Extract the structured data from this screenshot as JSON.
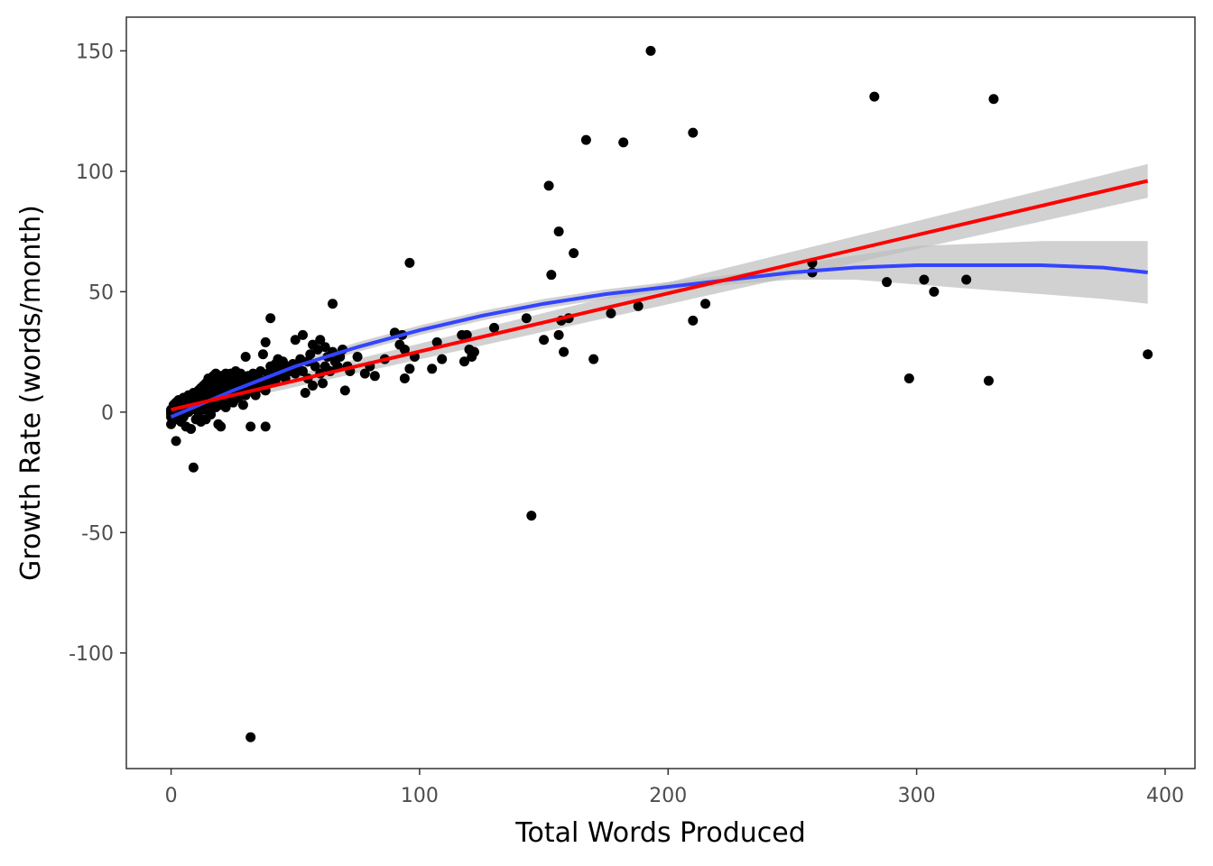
{
  "chart_data": {
    "type": "scatter",
    "title": "",
    "xlabel": "Total Words Produced",
    "ylabel": "Growth Rate (words/month)",
    "xlim": [
      -18,
      412
    ],
    "ylim": [
      -148,
      164
    ],
    "xticks": [
      0,
      100,
      200,
      300,
      400
    ],
    "yticks": [
      -100,
      -50,
      0,
      50,
      100,
      150
    ],
    "xtick_labels": [
      "0",
      "100",
      "200",
      "300",
      "400"
    ],
    "ytick_labels": [
      "-100",
      "-50",
      "0",
      "50",
      "100",
      "150"
    ],
    "grid": false,
    "legend": "none",
    "colors": {
      "points": "#000000",
      "linear_fit": "#ff0000",
      "smooth_fit": "#3344ff",
      "confidence_band": "#bebebe",
      "panel_border": "#333333"
    },
    "points": [
      [
        0,
        0
      ],
      [
        0,
        -2
      ],
      [
        0,
        1
      ],
      [
        0,
        -1
      ],
      [
        0,
        0.5
      ],
      [
        0,
        -5
      ],
      [
        1,
        1
      ],
      [
        1,
        -2
      ],
      [
        1,
        3
      ],
      [
        1,
        -1
      ],
      [
        2,
        0
      ],
      [
        2,
        2
      ],
      [
        2,
        -3
      ],
      [
        2,
        4
      ],
      [
        2,
        -12
      ],
      [
        3,
        1
      ],
      [
        3,
        -2
      ],
      [
        3,
        3
      ],
      [
        3,
        5
      ],
      [
        4,
        2
      ],
      [
        4,
        -1
      ],
      [
        4,
        4
      ],
      [
        4,
        -4
      ],
      [
        5,
        3
      ],
      [
        5,
        1
      ],
      [
        5,
        6
      ],
      [
        5,
        -2
      ],
      [
        6,
        2
      ],
      [
        6,
        -6
      ],
      [
        6,
        5
      ],
      [
        7,
        4
      ],
      [
        7,
        0
      ],
      [
        7,
        7
      ],
      [
        8,
        3
      ],
      [
        8,
        -7
      ],
      [
        8,
        6
      ],
      [
        8,
        1
      ],
      [
        9,
        -23
      ],
      [
        9,
        5
      ],
      [
        9,
        2
      ],
      [
        9,
        8
      ],
      [
        10,
        4
      ],
      [
        10,
        -3
      ],
      [
        10,
        7
      ],
      [
        10,
        1
      ],
      [
        11,
        6
      ],
      [
        11,
        3
      ],
      [
        11,
        9
      ],
      [
        11,
        -2
      ],
      [
        12,
        5
      ],
      [
        12,
        8
      ],
      [
        12,
        -4
      ],
      [
        12,
        10
      ],
      [
        13,
        4
      ],
      [
        13,
        7
      ],
      [
        13,
        1
      ],
      [
        13,
        11
      ],
      [
        14,
        6
      ],
      [
        14,
        9
      ],
      [
        14,
        -3
      ],
      [
        14,
        12
      ],
      [
        15,
        5
      ],
      [
        15,
        8
      ],
      [
        15,
        2
      ],
      [
        15,
        14
      ],
      [
        16,
        7
      ],
      [
        16,
        10
      ],
      [
        16,
        -1
      ],
      [
        16,
        4
      ],
      [
        17,
        9
      ],
      [
        17,
        12
      ],
      [
        17,
        6
      ],
      [
        17,
        15
      ],
      [
        18,
        8
      ],
      [
        18,
        11
      ],
      [
        18,
        2
      ],
      [
        18,
        16
      ],
      [
        19,
        10
      ],
      [
        19,
        6
      ],
      [
        19,
        13
      ],
      [
        19,
        -5
      ],
      [
        20,
        12
      ],
      [
        20,
        8
      ],
      [
        20,
        15
      ],
      [
        20,
        3
      ],
      [
        20,
        -6
      ],
      [
        21,
        10
      ],
      [
        21,
        14
      ],
      [
        21,
        6
      ],
      [
        22,
        11
      ],
      [
        22,
        16
      ],
      [
        22,
        8
      ],
      [
        22,
        2
      ],
      [
        23,
        9
      ],
      [
        23,
        13
      ],
      [
        23,
        5
      ],
      [
        24,
        12
      ],
      [
        24,
        16
      ],
      [
        24,
        7
      ],
      [
        25,
        10
      ],
      [
        25,
        14
      ],
      [
        25,
        4
      ],
      [
        26,
        13
      ],
      [
        26,
        9
      ],
      [
        26,
        17
      ],
      [
        27,
        11
      ],
      [
        27,
        6
      ],
      [
        27,
        15
      ],
      [
        28,
        12
      ],
      [
        28,
        8
      ],
      [
        28,
        16
      ],
      [
        29,
        10
      ],
      [
        29,
        14
      ],
      [
        29,
        3
      ],
      [
        30,
        23
      ],
      [
        30,
        12
      ],
      [
        30,
        7
      ],
      [
        31,
        15
      ],
      [
        31,
        10
      ],
      [
        32,
        -6
      ],
      [
        32,
        -135
      ],
      [
        32,
        13
      ],
      [
        33,
        9
      ],
      [
        33,
        16
      ],
      [
        34,
        12
      ],
      [
        34,
        7
      ],
      [
        35,
        14
      ],
      [
        35,
        10
      ],
      [
        36,
        17
      ],
      [
        36,
        11
      ],
      [
        37,
        24
      ],
      [
        37,
        13
      ],
      [
        38,
        29
      ],
      [
        38,
        -6
      ],
      [
        38,
        9
      ],
      [
        39,
        16
      ],
      [
        39,
        12
      ],
      [
        40,
        39
      ],
      [
        40,
        19
      ],
      [
        40,
        14
      ],
      [
        41,
        17
      ],
      [
        42,
        13
      ],
      [
        42,
        20
      ],
      [
        43,
        22
      ],
      [
        43,
        15
      ],
      [
        44,
        18
      ],
      [
        45,
        21
      ],
      [
        45,
        16
      ],
      [
        46,
        14
      ],
      [
        47,
        19
      ],
      [
        48,
        17
      ],
      [
        49,
        20
      ],
      [
        50,
        30
      ],
      [
        50,
        16
      ],
      [
        51,
        18
      ],
      [
        52,
        22
      ],
      [
        53,
        32
      ],
      [
        53,
        17
      ],
      [
        54,
        8
      ],
      [
        55,
        21
      ],
      [
        55,
        14
      ],
      [
        56,
        24
      ],
      [
        57,
        28
      ],
      [
        57,
        11
      ],
      [
        58,
        19
      ],
      [
        59,
        26
      ],
      [
        60,
        30
      ],
      [
        60,
        16
      ],
      [
        61,
        12
      ],
      [
        62,
        27
      ],
      [
        62,
        19
      ],
      [
        63,
        23
      ],
      [
        64,
        17
      ],
      [
        65,
        45
      ],
      [
        65,
        25
      ],
      [
        66,
        21
      ],
      [
        67,
        19
      ],
      [
        68,
        23
      ],
      [
        69,
        26
      ],
      [
        70,
        9
      ],
      [
        71,
        19
      ],
      [
        72,
        17
      ],
      [
        75,
        23
      ],
      [
        78,
        16
      ],
      [
        80,
        19
      ],
      [
        82,
        15
      ],
      [
        86,
        22
      ],
      [
        90,
        33
      ],
      [
        92,
        28
      ],
      [
        93,
        32
      ],
      [
        94,
        26
      ],
      [
        94,
        14
      ],
      [
        96,
        62
      ],
      [
        96,
        18
      ],
      [
        98,
        23
      ],
      [
        105,
        18
      ],
      [
        107,
        29
      ],
      [
        109,
        22
      ],
      [
        117,
        32
      ],
      [
        118,
        21
      ],
      [
        119,
        32
      ],
      [
        120,
        26
      ],
      [
        121,
        23
      ],
      [
        122,
        25
      ],
      [
        130,
        35
      ],
      [
        143,
        39
      ],
      [
        145,
        -43
      ],
      [
        150,
        30
      ],
      [
        152,
        94
      ],
      [
        153,
        57
      ],
      [
        156,
        75
      ],
      [
        156,
        32
      ],
      [
        157,
        38
      ],
      [
        158,
        25
      ],
      [
        160,
        39
      ],
      [
        162,
        66
      ],
      [
        167,
        113
      ],
      [
        170,
        22
      ],
      [
        177,
        41
      ],
      [
        182,
        112
      ],
      [
        188,
        44
      ],
      [
        193,
        150
      ],
      [
        210,
        116
      ],
      [
        210,
        38
      ],
      [
        215,
        45
      ],
      [
        258,
        58
      ],
      [
        258,
        62
      ],
      [
        283,
        131
      ],
      [
        288,
        54
      ],
      [
        297,
        14
      ],
      [
        303,
        55
      ],
      [
        307,
        50
      ],
      [
        320,
        55
      ],
      [
        329,
        13
      ],
      [
        331,
        130
      ],
      [
        393,
        24
      ]
    ],
    "linear_fit": {
      "x": [
        0,
        393
      ],
      "y": [
        1,
        96
      ],
      "ci_lower": [
        -1,
        89
      ],
      "ci_upper": [
        3,
        103
      ]
    },
    "smooth_fit": {
      "x": [
        0,
        25,
        50,
        75,
        100,
        125,
        150,
        175,
        200,
        225,
        250,
        275,
        300,
        325,
        350,
        375,
        393
      ],
      "y": [
        -2,
        9,
        19,
        27,
        34,
        40,
        45,
        49,
        52,
        55,
        58,
        60,
        61,
        61,
        61,
        60,
        58
      ],
      "ci_lower": [
        -4,
        7,
        17,
        25,
        32,
        38,
        43,
        47,
        50,
        53,
        55,
        55,
        53,
        51,
        49,
        47,
        45
      ],
      "ci_upper": [
        0,
        11,
        21,
        29,
        36,
        42,
        47,
        51,
        54,
        57,
        61,
        65,
        69,
        70,
        71,
        71,
        71
      ]
    }
  }
}
